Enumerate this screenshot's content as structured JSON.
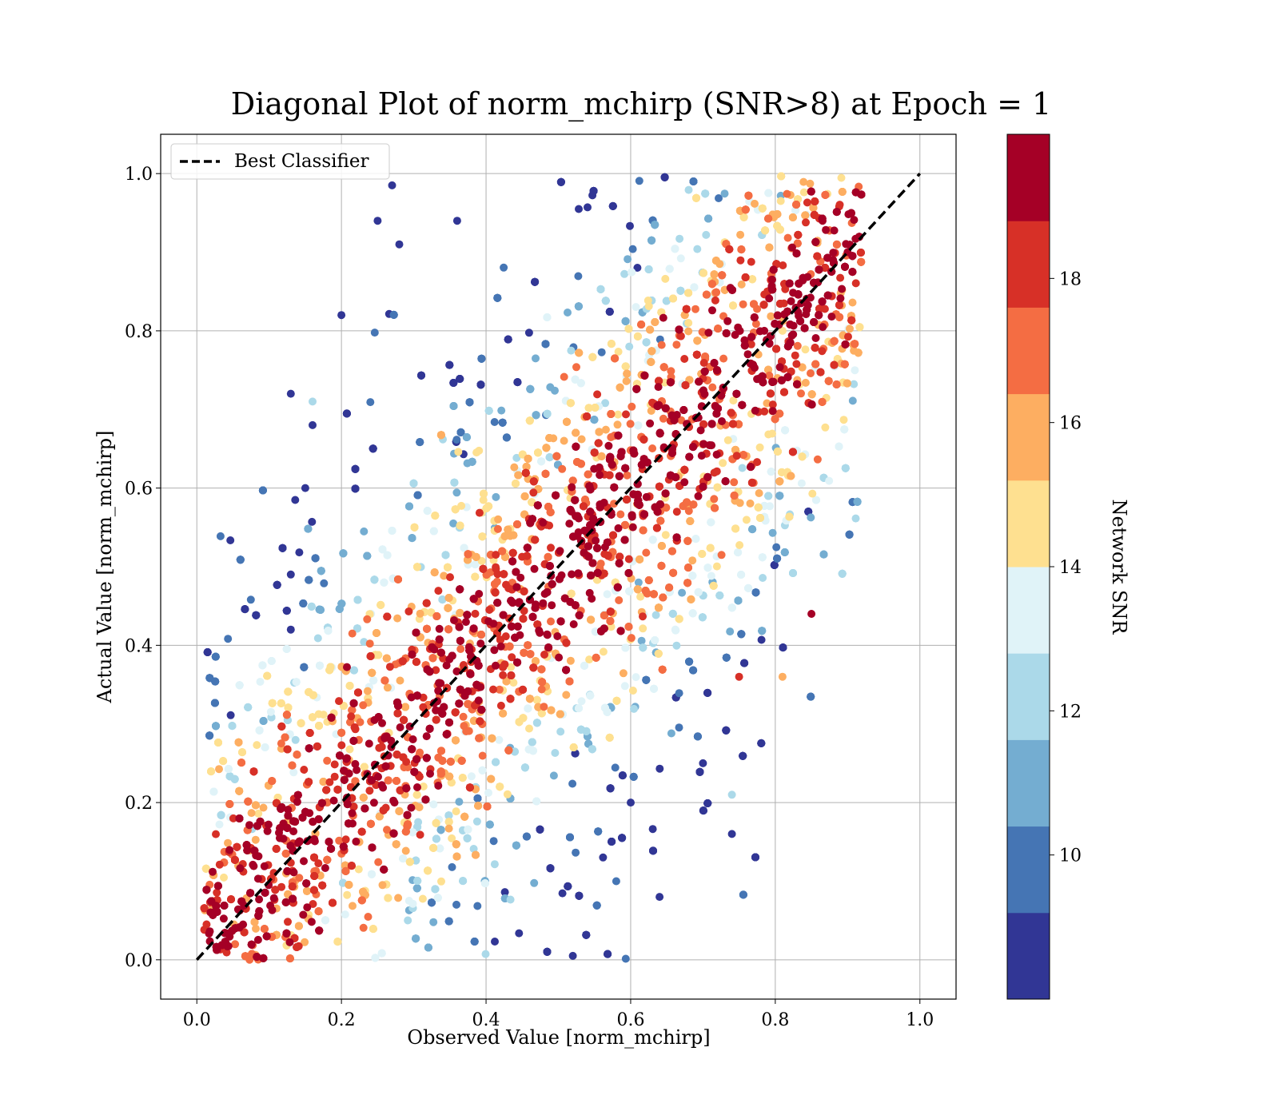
{
  "chart_data": {
    "type": "scatter",
    "title": "Diagonal Plot of norm_mchirp (SNR>8) at Epoch = 1",
    "xlabel": "Observed Value [norm_mchirp]",
    "ylabel": "Actual Value [norm_mchirp]",
    "xlim": [
      -0.05,
      1.05
    ],
    "ylim": [
      -0.05,
      1.05
    ],
    "xticks": [
      "0.0",
      "0.2",
      "0.4",
      "0.6",
      "0.8",
      "1.0"
    ],
    "yticks": [
      "0.0",
      "0.2",
      "0.4",
      "0.6",
      "0.8",
      "1.0"
    ],
    "grid": true,
    "legend": {
      "position": "top-left",
      "entries": [
        "Best Classifier"
      ]
    },
    "reference_line": {
      "name": "Best Classifier",
      "x": [
        0,
        1
      ],
      "y": [
        0,
        1
      ],
      "style": "dashed",
      "color": "#000000"
    },
    "colorbar": {
      "label": "Network SNR",
      "range": [
        8,
        20
      ],
      "ticks": [
        "10",
        "12",
        "14",
        "16",
        "18"
      ],
      "colors": [
        "#313695",
        "#4575b4",
        "#74add1",
        "#abd9e9",
        "#e0f3f8",
        "#fee090",
        "#fdae61",
        "#f46d43",
        "#d73027",
        "#a50026"
      ]
    },
    "points": [
      [
        0.27,
        0.985,
        9
      ],
      [
        0.25,
        0.94,
        9
      ],
      [
        0.36,
        0.94,
        9
      ],
      [
        0.28,
        0.91,
        9
      ],
      [
        0.13,
        0.72,
        9
      ],
      [
        0.16,
        0.68,
        9
      ],
      [
        0.2,
        0.82,
        9
      ],
      [
        0.15,
        0.6,
        9
      ],
      [
        0.13,
        0.49,
        9
      ],
      [
        0.13,
        0.42,
        9
      ],
      [
        0.74,
        0.16,
        9
      ],
      [
        0.16,
        0.71,
        12
      ],
      [
        0.74,
        0.21,
        12
      ],
      [
        0.81,
        0.36,
        16
      ],
      [
        0.85,
        0.44,
        19
      ],
      [
        0.81,
        0.8,
        15
      ],
      [
        0.9,
        0.9,
        19
      ],
      [
        0.64,
        0.08,
        9
      ],
      [
        0.58,
        0.1,
        10
      ],
      [
        0.52,
        0.005,
        9
      ],
      [
        0.6,
        0.2,
        9
      ],
      [
        0.7,
        0.25,
        9
      ],
      [
        0.88,
        0.89,
        19
      ],
      [
        0.75,
        0.36,
        18
      ]
    ]
  }
}
